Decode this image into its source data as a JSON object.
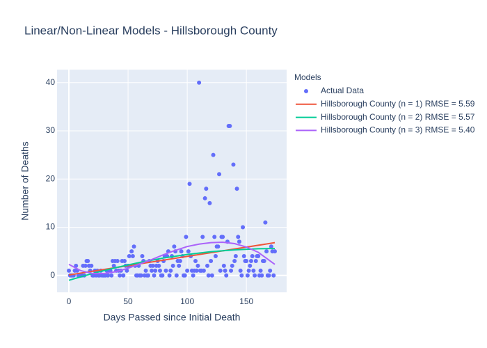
{
  "chart_data": {
    "type": "scatter",
    "title": "Linear/Non-Linear Models - Hillsborough County",
    "x_label": "Days Passed since Initial Death",
    "y_label": "Number of Deaths",
    "legend_title": "Models",
    "xlim": [
      -10,
      184
    ],
    "ylim": [
      -3.5,
      42.7
    ],
    "xticks": [
      0,
      50,
      100,
      150
    ],
    "yticks": [
      0,
      10,
      20,
      30,
      40
    ],
    "grid": true,
    "legend": "right",
    "series": [
      {
        "name": "Actual Data",
        "mode": "markers",
        "color": "#636efa",
        "x": [
          0,
          1,
          2,
          3,
          4,
          5,
          6,
          7,
          8,
          9,
          10,
          11,
          12,
          13,
          14,
          15,
          16,
          17,
          18,
          19,
          20,
          21,
          22,
          23,
          24,
          25,
          26,
          27,
          28,
          29,
          30,
          31,
          32,
          33,
          34,
          35,
          36,
          37,
          38,
          39,
          40,
          41,
          42,
          43,
          44,
          45,
          46,
          47,
          48,
          49,
          50,
          51,
          52,
          53,
          54,
          55,
          56,
          57,
          58,
          59,
          60,
          61,
          62,
          63,
          64,
          65,
          66,
          67,
          68,
          69,
          70,
          71,
          72,
          73,
          74,
          75,
          76,
          77,
          78,
          79,
          80,
          81,
          82,
          83,
          84,
          85,
          86,
          87,
          88,
          89,
          90,
          91,
          92,
          93,
          94,
          95,
          96,
          97,
          98,
          99,
          100,
          101,
          102,
          103,
          104,
          105,
          106,
          107,
          108,
          109,
          110,
          111,
          112,
          113,
          114,
          115,
          116,
          117,
          118,
          119,
          120,
          121,
          122,
          123,
          124,
          125,
          126,
          127,
          128,
          129,
          130,
          131,
          132,
          133,
          134,
          135,
          136,
          137,
          138,
          139,
          140,
          141,
          142,
          143,
          144,
          145,
          146,
          147,
          148,
          149,
          150,
          151,
          152,
          153,
          154,
          155,
          156,
          157,
          158,
          159,
          160,
          161,
          162,
          163,
          164,
          165,
          166,
          167,
          168,
          169,
          170,
          171,
          172,
          173,
          174
        ],
        "values": [
          1,
          0,
          0,
          0,
          0,
          1,
          2,
          1,
          0,
          0,
          0,
          0,
          2,
          0,
          2,
          3,
          3,
          2,
          1,
          2,
          0,
          0,
          1,
          0,
          1,
          0,
          0,
          1,
          0,
          0,
          0,
          0,
          1,
          0,
          1,
          1,
          0,
          3,
          2,
          3,
          1,
          3,
          1,
          0,
          1,
          3,
          0,
          3,
          2,
          1,
          2,
          4,
          2,
          5,
          4,
          6,
          2,
          0,
          0,
          2,
          0,
          0,
          4,
          3,
          0,
          1,
          0,
          0,
          3,
          2,
          1,
          2,
          0,
          1,
          2,
          3,
          2,
          1,
          0,
          0,
          3,
          4,
          1,
          4,
          5,
          0,
          1,
          4,
          2,
          6,
          5,
          0,
          3,
          2,
          3,
          5,
          4,
          0,
          0,
          8,
          1,
          5,
          19,
          4,
          1,
          0,
          1,
          3,
          1,
          2,
          40,
          1,
          1,
          8,
          1,
          16,
          18,
          2,
          0,
          15,
          3,
          0,
          25,
          8,
          4,
          6,
          6,
          21,
          1,
          8,
          8,
          2,
          1,
          0,
          7,
          31,
          31,
          1,
          2,
          23,
          3,
          4,
          18,
          8,
          7,
          1,
          0,
          10,
          4,
          3,
          3,
          0,
          1,
          2,
          3,
          4,
          1,
          0,
          3,
          4,
          4,
          0,
          1,
          0,
          3,
          3,
          11,
          5,
          0,
          0,
          1,
          6,
          5,
          0,
          5
        ]
      },
      {
        "name": "Hillsborough County (n = 1) RMSE = 5.59",
        "mode": "lines",
        "color": "#EF553B",
        "x": [
          0,
          174
        ],
        "values": [
          0.1,
          6.8
        ]
      },
      {
        "name": "Hillsborough County (n = 2) RMSE = 5.57",
        "mode": "lines",
        "color": "#00cc96",
        "x": [
          0,
          20,
          40,
          60,
          80,
          100,
          120,
          140,
          160,
          174
        ],
        "values": [
          -1,
          0.41,
          1.64,
          2.71,
          3.62,
          4.35,
          4.92,
          5.31,
          5.54,
          5.6
        ]
      },
      {
        "name": "Hillsborough County (n = 3) RMSE = 5.40",
        "mode": "lines",
        "color": "#ab63fa",
        "x": [
          0,
          10,
          20,
          30,
          40,
          50,
          60,
          70,
          80,
          90,
          100,
          110,
          120,
          130,
          140,
          150,
          160,
          174
        ],
        "values": [
          2.3,
          1.0,
          0.4,
          0.4,
          0.8,
          1.5,
          2.4,
          3.3,
          4.3,
          5.2,
          6.0,
          6.5,
          6.8,
          6.9,
          6.6,
          5.9,
          4.8,
          2.3
        ]
      }
    ]
  }
}
